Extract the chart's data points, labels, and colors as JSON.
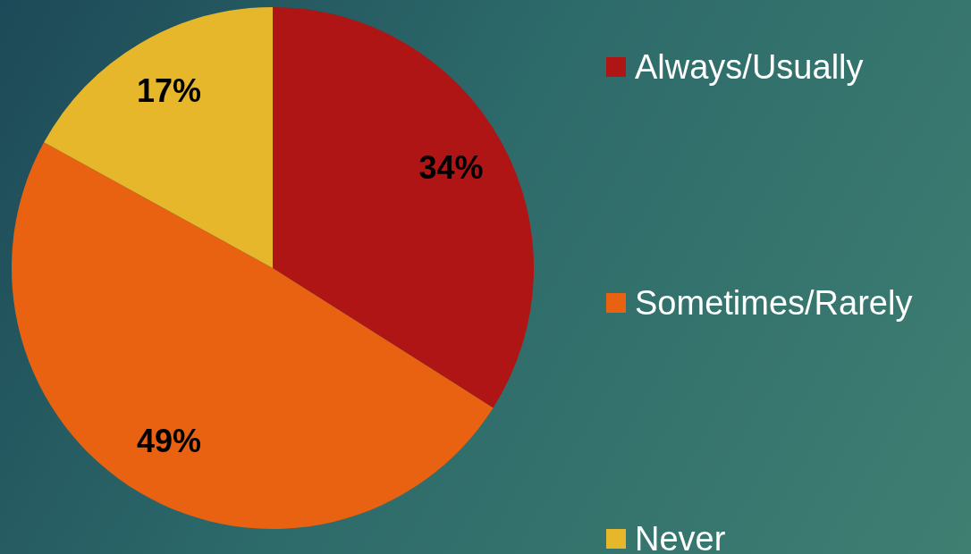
{
  "chart_data": {
    "type": "pie",
    "categories": [
      "Always/Usually",
      "Sometimes/Rarely",
      "Never"
    ],
    "values": [
      34,
      49,
      17
    ],
    "colors": [
      "#af1515",
      "#e86211",
      "#e6b72a"
    ],
    "value_labels": [
      "34%",
      "49%",
      "17%"
    ],
    "legend": "right"
  }
}
